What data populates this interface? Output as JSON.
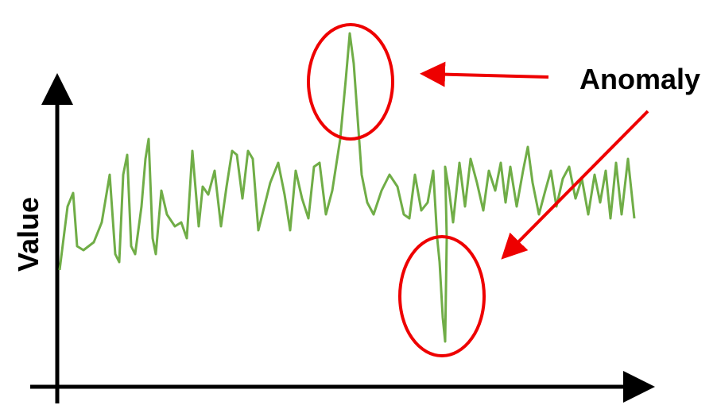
{
  "axis_label": "Value",
  "annotation": "Anomaly"
}
